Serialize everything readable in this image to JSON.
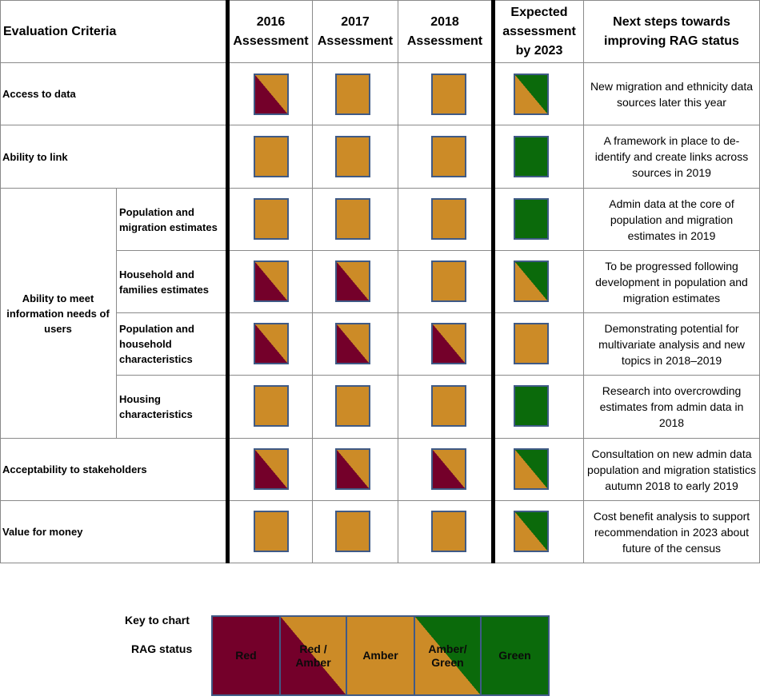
{
  "colors": {
    "red": "#74002a",
    "amber": "#cc8b27",
    "green": "#0b6a0b",
    "square_border": "#3f5a86"
  },
  "header": {
    "criteria": "Evaluation Criteria",
    "y2016": "2016 Assessment",
    "y2017": "2017 Assessment",
    "y2018": "2018 Assessment",
    "expected": "Expected assessment by 2023",
    "next_steps": "Next steps towards improving RAG status"
  },
  "rows": [
    {
      "criterion": "Access to data",
      "r2016": "red-amber",
      "r2017": "amber",
      "r2018": "amber",
      "exp2023": "amber-green",
      "next_steps": "New migration and ethnicity data sources later this year"
    },
    {
      "criterion": "Ability to link",
      "r2016": "amber",
      "r2017": "amber",
      "r2018": "amber",
      "exp2023": "green",
      "next_steps": "A framework in place to de-identify and create links across sources in 2019"
    },
    {
      "criterion": "Population and migration estimates",
      "r2016": "amber",
      "r2017": "amber",
      "r2018": "amber",
      "exp2023": "green",
      "next_steps": "Admin data at the core of population and migration estimates in 2019"
    },
    {
      "criterion": "Household and families estimates",
      "r2016": "red-amber",
      "r2017": "red-amber",
      "r2018": "amber",
      "exp2023": "amber-green",
      "next_steps": "To be progressed following development in population and migration estimates"
    },
    {
      "criterion": "Population and household characteristics",
      "r2016": "red-amber",
      "r2017": "red-amber",
      "r2018": "red-amber",
      "exp2023": "amber",
      "next_steps": "Demonstrating potential for multivariate analysis and new topics in 2018–2019"
    },
    {
      "criterion": "Housing characteristics",
      "r2016": "amber",
      "r2017": "amber",
      "r2018": "amber",
      "exp2023": "green",
      "next_steps": "Research into overcrowding estimates from admin data in 2018"
    },
    {
      "criterion": "Acceptability to stakeholders",
      "r2016": "red-amber",
      "r2017": "red-amber",
      "r2018": "red-amber",
      "exp2023": "amber-green",
      "next_steps": "Consultation on new admin data population and migration statistics autumn 2018 to early 2019"
    },
    {
      "criterion": "Value for money",
      "r2016": "amber",
      "r2017": "amber",
      "r2018": "amber",
      "exp2023": "amber-green",
      "next_steps": "Cost benefit analysis to support recommendation in 2023 about future of the census"
    }
  ],
  "group": {
    "label": "Ability to meet information needs of users"
  },
  "legend": {
    "heading": "Key to chart",
    "label": "RAG status",
    "items": [
      {
        "label": "Red",
        "status": "red"
      },
      {
        "label": "Red / Amber",
        "status": "red-amber"
      },
      {
        "label": "Amber",
        "status": "amber"
      },
      {
        "label": "Amber/ Green",
        "status": "amber-green"
      },
      {
        "label": "Green",
        "status": "green"
      }
    ]
  }
}
